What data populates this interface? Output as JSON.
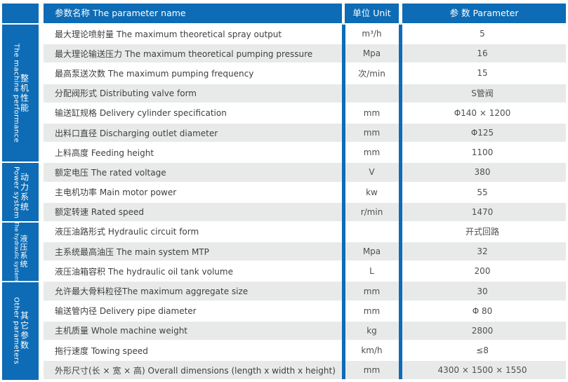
{
  "header": {
    "name": "参数名称   The parameter name",
    "unit": "单位 Unit",
    "param": "参 数 Parameter"
  },
  "colors": {
    "table_blue": "#0d6cb5",
    "stripe_gray": "#e8eaea",
    "text_dark": "#3e3e3e",
    "header_text": "#ffffff"
  },
  "sections": [
    {
      "zh": "整机性能",
      "en": "The machine performance",
      "rows": 7
    },
    {
      "zh": "动力系统",
      "en": "Power system",
      "rows": 3
    },
    {
      "zh": "液压系统",
      "en": "The hydraulic system",
      "rows": 3
    },
    {
      "zh": "其它参数",
      "en": "Other parameters",
      "rows": 5
    }
  ],
  "rows": [
    {
      "name": "最大理论喷射量 The maximum theoretical spray output",
      "unit": "m³/h",
      "value": "5"
    },
    {
      "name": "最大理论输送压力 The maximum theoretical pumping pressure",
      "unit": "Mpa",
      "value": "16"
    },
    {
      "name": "最高泵送次数 The maximum pumping frequency",
      "unit": "次/min",
      "value": "15"
    },
    {
      "name": "分配阀形式 Distributing valve form",
      "unit": "",
      "value": "S管阀"
    },
    {
      "name": "输送缸规格 Delivery cylinder specification",
      "unit": "mm",
      "value": "Φ140 × 1200"
    },
    {
      "name": "出料口直径 Discharging outlet diameter",
      "unit": "mm",
      "value": "Φ125"
    },
    {
      "name": "上料高度 Feeding height",
      "unit": "mm",
      "value": "1100"
    },
    {
      "name": "额定电压 The rated voltage",
      "unit": "V",
      "value": "380"
    },
    {
      "name": "主电机功率 Main motor power",
      "unit": "kw",
      "value": "55"
    },
    {
      "name": "额定转速 Rated speed",
      "unit": "r/min",
      "value": "1470"
    },
    {
      "name": "液压油路形式 Hydraulic circuit form",
      "unit": "",
      "value": "开式回路"
    },
    {
      "name": "主系统最高油压 The main system MTP",
      "unit": "Mpa",
      "value": "32"
    },
    {
      "name": "液压油箱容积 The hydraulic oil tank volume",
      "unit": "L",
      "value": "200"
    },
    {
      "name": "允许最大骨料粒径The maximum aggregate size",
      "unit": "mm",
      "value": "30"
    },
    {
      "name": "输送管内径 Delivery pipe diameter",
      "unit": "mm",
      "value": "Φ 80"
    },
    {
      "name": "主机质量  Whole machine weight",
      "unit": "kg",
      "value": "2800"
    },
    {
      "name": "拖行速度 Towing  speed",
      "unit": "km/h",
      "value": "≤8"
    },
    {
      "name": "外形尺寸(长 × 宽 × 高) Overall dimensions (length x width x height)",
      "unit": "mm",
      "value": "4300 × 1500 × 1550"
    }
  ]
}
